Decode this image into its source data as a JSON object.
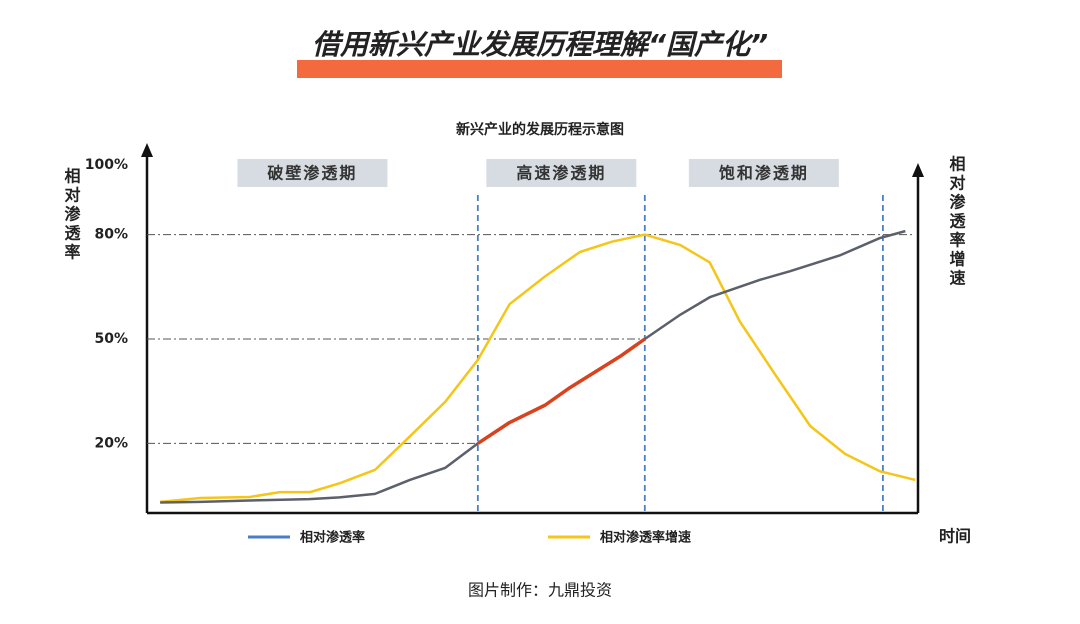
{
  "header": {
    "title": "借用新兴产业发展历程理解“国产化”"
  },
  "chart_data": {
    "type": "line",
    "title": "新兴产业的发展历程示意图",
    "y_label": "相对渗透率",
    "y2_label": "相对渗透率增速",
    "x_label": "时间",
    "xlim": [
      0,
      100
    ],
    "ylim": [
      0,
      100
    ],
    "yticks": [
      {
        "value": 20,
        "label": "20%"
      },
      {
        "value": 50,
        "label": "50%"
      },
      {
        "value": 80,
        "label": "80%"
      },
      {
        "value": 100,
        "label": "100%"
      }
    ],
    "phase_boundaries": [
      42.8,
      64.4,
      95.2
    ],
    "phases": [
      "破壁渗透期",
      "高速渗透期",
      "饱和渗透期"
    ],
    "x": [
      1.7,
      6.9,
      13.3,
      21.0,
      24.9,
      29.5,
      34.0,
      38.6,
      42.8,
      46.9,
      51.5,
      54.7,
      61.2,
      64.4,
      69.0,
      72.8,
      79.3,
      83.2,
      89.6,
      94.8,
      98.1
    ],
    "series": [
      {
        "name": "相对渗透率",
        "color": "#5b606b",
        "legend_color": "#4a7fc8",
        "values": [
          3,
          3.2,
          3.6,
          4,
          4.5,
          5.5,
          9.5,
          13,
          20,
          26,
          31,
          36,
          45,
          50,
          57,
          62,
          67,
          69.5,
          74,
          79,
          81
        ]
      },
      {
        "color": "#d8431e",
        "values": [
          null,
          null,
          null,
          null,
          null,
          null,
          null,
          null,
          20,
          26,
          31,
          36,
          45,
          50,
          null,
          null,
          null,
          null,
          null,
          null,
          null
        ]
      }
    ],
    "series2": {
      "name": "相对渗透率增速",
      "color": "#f5c518",
      "x": [
        1.7,
        6.9,
        13.3,
        17.2,
        21.1,
        25.0,
        29.5,
        34.0,
        38.6,
        42.8,
        46.9,
        51.5,
        56.0,
        60.2,
        64.4,
        69.0,
        72.8,
        76.7,
        81.2,
        85.8,
        90.3,
        94.8,
        99.4
      ],
      "values": [
        3.2,
        4.3,
        4.6,
        6,
        6,
        8.6,
        12.4,
        22,
        32,
        44,
        60,
        68,
        75,
        78,
        80,
        77,
        72,
        55,
        40,
        25,
        17,
        12,
        9.5
      ]
    },
    "source": "图片制作：九鼎投资"
  }
}
